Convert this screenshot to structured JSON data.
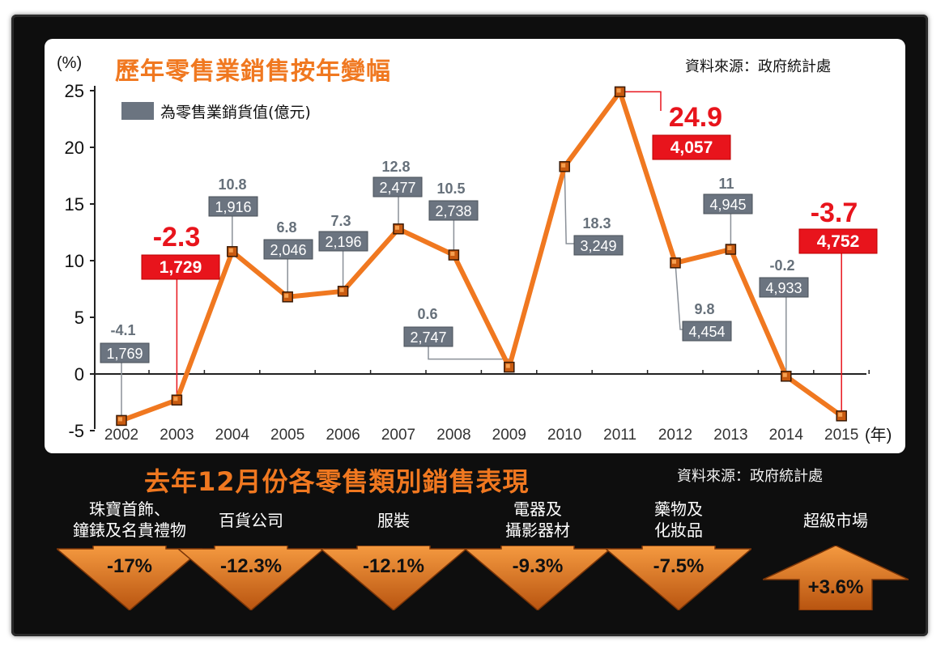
{
  "chart1": {
    "title": "歷年零售業銷售按年變幅",
    "source": "資料來源：政府統計處",
    "y_unit": "(%)",
    "x_unit": "(年)",
    "legend": "為零售業銷貨值(億元)",
    "colors": {
      "line": "#f07820",
      "marker": "#e0701a",
      "box_grey": "#6b7480",
      "box_red": "#e8141c",
      "pct_grey": "#66707a",
      "pct_red": "#e8141c"
    }
  },
  "chart_data": {
    "type": "line",
    "title": "歷年零售業銷售按年變幅",
    "xlabel": "(年)",
    "ylabel": "(%)",
    "ylim": [
      -5,
      25
    ],
    "yticks": [
      25,
      20,
      15,
      10,
      5,
      0,
      -5
    ],
    "x": [
      "2002",
      "2003",
      "2004",
      "2005",
      "2006",
      "2007",
      "2008",
      "2009",
      "2010",
      "2011",
      "2012",
      "2013",
      "2014",
      "2015"
    ],
    "series": [
      {
        "name": "零售業銷售按年變幅",
        "values": [
          -4.1,
          -2.3,
          10.8,
          6.8,
          7.3,
          12.8,
          10.5,
          0.6,
          18.3,
          24.9,
          9.8,
          11,
          -0.2,
          -3.7
        ]
      }
    ],
    "pct_labels": [
      "-4.1",
      "-2.3",
      "10.8",
      "6.8",
      "7.3",
      "12.8",
      "10.5",
      "0.6",
      "18.3",
      "24.9",
      "9.8",
      "11",
      "-0.2",
      "-3.7"
    ],
    "sales_value_series": {
      "name": "為零售業銷貨值(億元)",
      "values": [
        "1,769",
        "1,729",
        "1,916",
        "2,046",
        "2,196",
        "2,477",
        "2,738",
        "2,747",
        "3,249",
        "4,057",
        "4,454",
        "4,945",
        "4,933",
        "4,752"
      ]
    },
    "highlighted": [
      "2003",
      "2011",
      "2015"
    ],
    "grid": false,
    "legend_position": "top-left"
  },
  "section2": {
    "title": "去年12月份各零售類別銷售表現",
    "source": "資料來源：政府統計處",
    "categories": [
      {
        "line1": "珠寶首飾、",
        "line2": "鐘錶及名貴禮物",
        "value": "-17%",
        "direction": "down"
      },
      {
        "line1": "百貨公司",
        "line2": "",
        "value": "-12.3%",
        "direction": "down"
      },
      {
        "line1": "服裝",
        "line2": "",
        "value": "-12.1%",
        "direction": "down"
      },
      {
        "line1": "電器及",
        "line2": "攝影器材",
        "value": "-9.3%",
        "direction": "down"
      },
      {
        "line1": "藥物及",
        "line2": "化妝品",
        "value": "-7.5%",
        "direction": "down"
      },
      {
        "line1": "超級市場",
        "line2": "",
        "value": "+3.6%",
        "direction": "up"
      }
    ],
    "colors": {
      "arrow": "#f07820",
      "arrow_dark": "#b85410"
    }
  }
}
